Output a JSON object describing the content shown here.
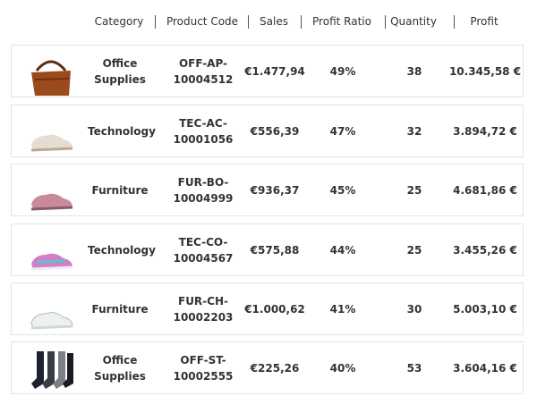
{
  "header": {
    "columns": [
      "Category",
      "Product Code",
      "Sales",
      "Profit Ratio",
      "Quantity",
      "Profit"
    ]
  },
  "rows": [
    {
      "category": "Office Supplies",
      "code": [
        "OFF-AP-",
        "10004512"
      ],
      "sales": "€1.477,94",
      "profit_ratio": "49%",
      "quantity": 38,
      "profit": "10.345,58 €"
    },
    {
      "category": "Technology",
      "code": [
        "TEC-AC-",
        "10001056"
      ],
      "sales": "€556,39",
      "profit_ratio": "47%",
      "quantity": 32,
      "profit": "3.894,72 €"
    },
    {
      "category": "Furniture",
      "code": [
        "FUR-BO-",
        "10004999"
      ],
      "sales": "€936,37",
      "profit_ratio": "45%",
      "quantity": 25,
      "profit": "4.681,86 €"
    },
    {
      "category": "Technology",
      "code": [
        "TEC-CO-",
        "10004567"
      ],
      "sales": "€575,88",
      "profit_ratio": "44%",
      "quantity": 25,
      "profit": "3.455,26 €"
    },
    {
      "category": "Furniture",
      "code": [
        "FUR-CH-",
        "10002203"
      ],
      "sales": "€1.000,62",
      "profit_ratio": "41%",
      "quantity": 30,
      "profit": "5.003,10 €"
    },
    {
      "category": "Office Supplies",
      "code": [
        "OFF-ST-",
        "10002555"
      ],
      "sales": "€225,26",
      "profit_ratio": "40%",
      "quantity": 53,
      "profit": "3.604,16 €"
    }
  ]
}
